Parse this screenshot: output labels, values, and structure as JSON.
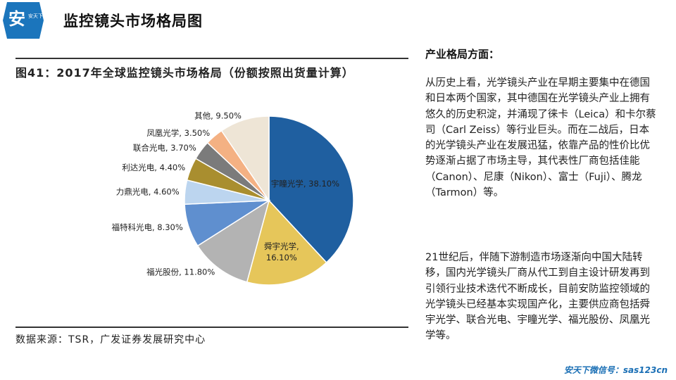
{
  "header": {
    "logo_text": "安天下",
    "title": "监控镜头市场格局图"
  },
  "figure": {
    "caption": "图41：2017年全球监控镜头市场格局（份额按照出货量计算）",
    "source": "数据来源：TSR，广发证券发展研究中心"
  },
  "chart_data": {
    "type": "pie",
    "title": "图41：2017年全球监控镜头市场格局（份额按照出货量计算）",
    "slices": [
      {
        "label": "宇瞳光学",
        "value": 38.1,
        "display": "38.10%",
        "color": "#1f5fa0"
      },
      {
        "label": "舜宇光学",
        "value": 16.1,
        "display": "16.10%",
        "color": "#e6c65a"
      },
      {
        "label": "福光股份",
        "value": 11.8,
        "display": "11.80%",
        "color": "#b3b3b3"
      },
      {
        "label": "福特科光电",
        "value": 8.3,
        "display": "8.30%",
        "color": "#5f8fcf"
      },
      {
        "label": "力鼎光电",
        "value": 4.6,
        "display": "4.60%",
        "color": "#bcd5ef"
      },
      {
        "label": "利达光电",
        "value": 4.4,
        "display": "4.40%",
        "color": "#a98e2f"
      },
      {
        "label": "联合光电",
        "value": 3.7,
        "display": "3.70%",
        "color": "#7b7b7b"
      },
      {
        "label": "凤凰光学",
        "value": 3.5,
        "display": "3.50%",
        "color": "#f4b183"
      },
      {
        "label": "其他",
        "value": 9.5,
        "display": "9.50%",
        "color": "#eee5d6"
      }
    ]
  },
  "right": {
    "heading": "产业格局方面：",
    "p1": "从历史上看，光学镜头产业在早期主要集中在德国和日本两个国家，其中德国在光学镜头产业上拥有悠久的历史积淀，并涌现了徕卡（Leica）和卡尔蔡司（Carl Zeiss）等行业巨头。而在二战后，日本的光学镜头产业在发展迅猛，依靠产品的性价比优势逐渐占据了市场主导，其代表性厂商包括佳能（Canon）、尼康（Nikon）、富士（Fuji）、腾龙（Tarmon）等。",
    "p2": "21世纪后，伴随下游制造市场逐渐向中国大陆转移，国内光学镜头厂商从代工到自主设计研发再到引领行业技术迭代不断成长，目前安防监控领域的光学镜头已经基本实现国产化，主要供应商包括舜宇光学、联合光电、宇瞳光学、福光股份、凤凰光学等。"
  },
  "footer": {
    "text": "安天下微信号：sas123cn"
  }
}
